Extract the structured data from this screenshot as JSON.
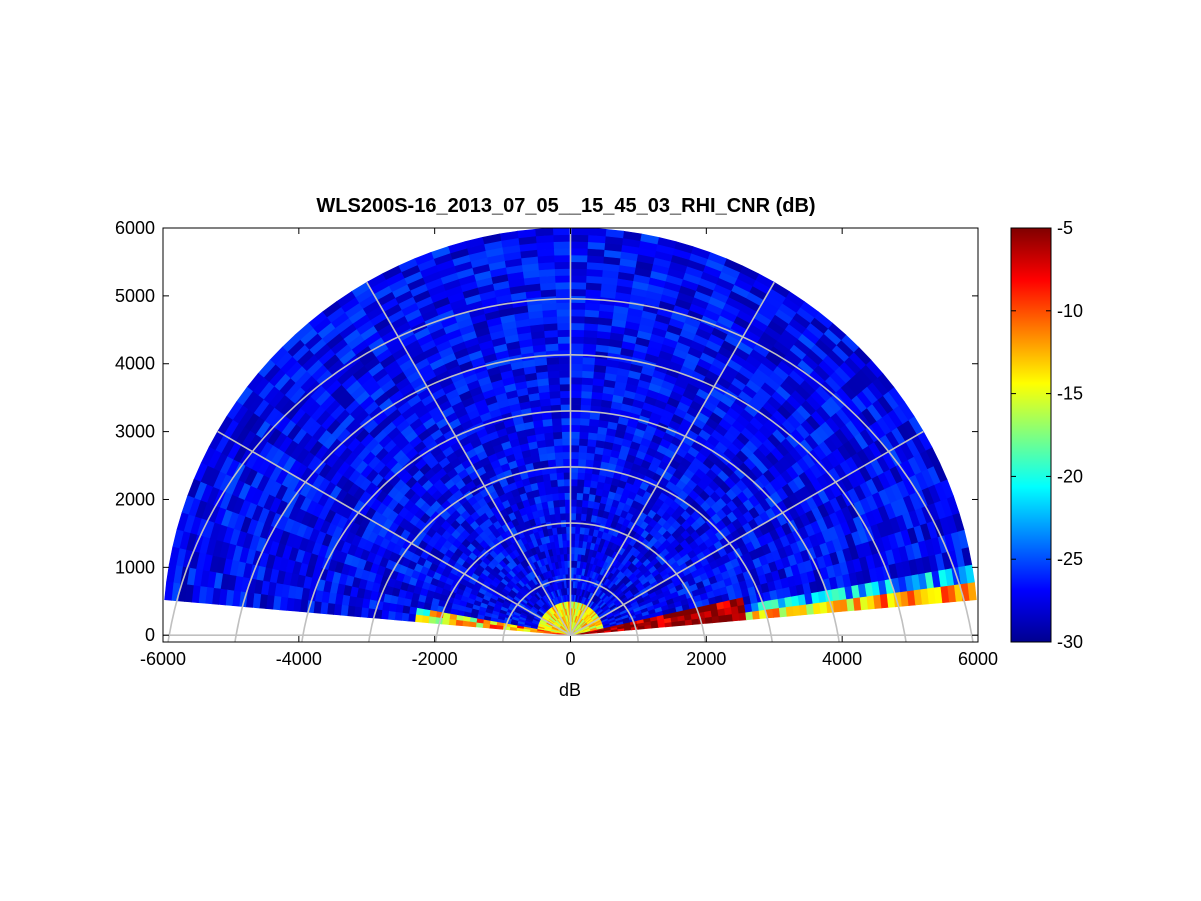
{
  "chart_data": {
    "type": "heatmap",
    "title": "WLS200S-16_2013_07_05__15_45_03_RHI_CNR (dB)",
    "xlabel": "dB",
    "ylabel": "",
    "xlim": [
      -6000,
      6000
    ],
    "ylim": [
      -100,
      6000
    ],
    "x_ticks": [
      "-6000",
      "-4000",
      "-2000",
      "0",
      "2000",
      "4000",
      "6000"
    ],
    "y_ticks": [
      "0",
      "1000",
      "2000",
      "3000",
      "4000",
      "5000",
      "6000"
    ],
    "colorbar": {
      "colormap": "jet",
      "range": [
        -30,
        -5
      ],
      "ticks": [
        "-5",
        "-10",
        "-15",
        "-20",
        "-25",
        "-30"
      ]
    },
    "polar_grid": {
      "range_rings": [
        1000,
        2000,
        3000,
        4000,
        5000,
        6000
      ],
      "spokes_deg": [
        30,
        60,
        90,
        120,
        150
      ]
    },
    "scan": {
      "max_range_m": 6000,
      "elevation_deg_min": 5,
      "elevation_deg_max": 175
    },
    "field_summary": [
      {
        "region": "far range, most elevations",
        "cnr_db": -27
      },
      {
        "region": "near ground, 0-1500 m, west side",
        "cnr_db": -10
      },
      {
        "region": "near ground, 0-2500 m, east side",
        "cnr_db": -6
      },
      {
        "region": "low elevation east, 2500-6000 m",
        "cnr_db": -17
      },
      {
        "region": "closest gates (<500 m)",
        "cnr_db": -14
      }
    ]
  }
}
